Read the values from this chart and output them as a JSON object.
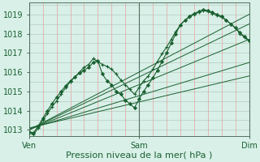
{
  "background_color": "#d8f0e8",
  "plot_bg_color": "#d8f0e8",
  "grid_major_color": "#b8ccc0",
  "grid_minor_color_v": "#f0b8b8",
  "grid_minor_color_h": "#b8ccc0",
  "line_color": "#1a6030",
  "xlabel": "Pression niveau de la mer( hPa )",
  "xlabel_fontsize": 8,
  "tick_label_fontsize": 7,
  "xlim": [
    0,
    48
  ],
  "ylim": [
    1012.7,
    1019.6
  ],
  "yticks": [
    1013,
    1014,
    1015,
    1016,
    1017,
    1018,
    1019
  ],
  "xtick_positions": [
    0,
    24,
    48
  ],
  "xtick_labels": [
    "Ven",
    "Sam",
    "Dim"
  ],
  "vlines_dark": [
    0,
    24,
    48
  ],
  "vlines_minor_step": 3,
  "hlines_minor_step": 0.5,
  "line1": {
    "x": [
      0,
      1,
      2,
      3,
      4,
      5,
      6,
      7,
      8,
      9,
      10,
      11,
      12,
      13,
      14,
      15,
      16,
      17,
      18,
      19,
      20,
      21,
      22,
      23,
      24,
      25,
      26,
      27,
      28,
      29,
      30,
      31,
      32,
      33,
      34,
      35,
      36,
      37,
      38,
      39,
      40,
      41,
      42,
      43,
      44,
      45,
      46,
      47,
      48
    ],
    "y": [
      1012.85,
      1012.75,
      1013.1,
      1013.5,
      1013.85,
      1014.2,
      1014.5,
      1014.85,
      1015.2,
      1015.5,
      1015.75,
      1016.0,
      1016.25,
      1016.4,
      1016.7,
      1016.55,
      1016.4,
      1016.3,
      1016.15,
      1015.9,
      1015.6,
      1015.35,
      1015.1,
      1014.85,
      1015.2,
      1015.55,
      1015.8,
      1016.15,
      1016.55,
      1016.95,
      1017.3,
      1017.7,
      1018.1,
      1018.45,
      1018.7,
      1018.85,
      1019.0,
      1019.1,
      1019.2,
      1019.15,
      1019.05,
      1018.95,
      1018.85,
      1018.7,
      1018.5,
      1018.3,
      1018.0,
      1017.8,
      1017.6
    ],
    "marker": "+"
  },
  "line2": {
    "x": [
      0,
      1,
      2,
      3,
      4,
      5,
      6,
      7,
      8,
      9,
      10,
      11,
      12,
      13,
      14,
      15,
      16,
      17,
      18,
      19,
      20,
      21,
      22,
      23,
      24,
      25,
      26,
      27,
      28,
      29,
      30,
      31,
      32,
      33,
      34,
      35,
      36,
      37,
      38,
      39,
      40,
      41,
      42,
      43,
      44,
      45,
      46,
      47,
      48
    ],
    "y": [
      1012.9,
      1012.85,
      1013.2,
      1013.6,
      1014.0,
      1014.35,
      1014.7,
      1015.0,
      1015.3,
      1015.55,
      1015.75,
      1015.95,
      1016.1,
      1016.25,
      1016.5,
      1016.6,
      1015.9,
      1015.55,
      1015.35,
      1015.0,
      1014.85,
      1014.55,
      1014.35,
      1014.15,
      1014.6,
      1015.0,
      1015.35,
      1015.7,
      1016.1,
      1016.55,
      1017.0,
      1017.5,
      1018.0,
      1018.45,
      1018.7,
      1018.9,
      1019.05,
      1019.15,
      1019.25,
      1019.2,
      1019.1,
      1019.0,
      1018.9,
      1018.7,
      1018.5,
      1018.3,
      1018.05,
      1017.85,
      1017.65
    ],
    "marker": "D"
  },
  "straight_lines": [
    {
      "x": [
        0,
        48
      ],
      "y": [
        1013.0,
        1019.0
      ]
    },
    {
      "x": [
        0,
        48
      ],
      "y": [
        1013.0,
        1018.5
      ]
    },
    {
      "x": [
        0,
        48
      ],
      "y": [
        1013.0,
        1017.7
      ]
    },
    {
      "x": [
        0,
        48
      ],
      "y": [
        1013.05,
        1016.5
      ]
    },
    {
      "x": [
        0,
        48
      ],
      "y": [
        1013.1,
        1015.8
      ]
    }
  ]
}
